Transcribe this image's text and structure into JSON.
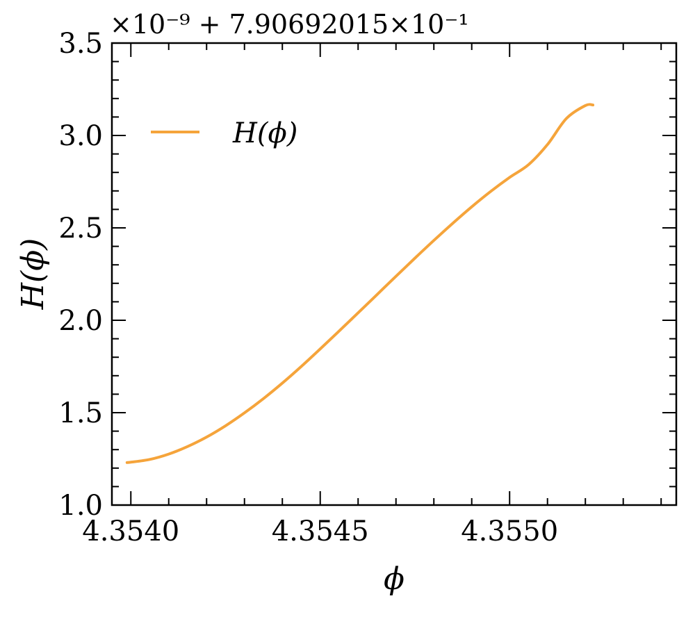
{
  "chart_data": {
    "type": "line",
    "xlabel": "ϕ",
    "ylabel": "H(ϕ)",
    "offset_text": "×10⁻⁹ + 7.90692015×10⁻¹",
    "xlim": [
      4.35395,
      4.35544
    ],
    "ylim": [
      1.0,
      3.5
    ],
    "x_major_ticks": [
      4.354,
      4.3545,
      4.355
    ],
    "x_tick_labels": [
      "4.3540",
      "4.3545",
      "4.3550"
    ],
    "x_minor_step": 0.0001,
    "y_major_ticks": [
      1.0,
      1.5,
      2.0,
      2.5,
      3.0,
      3.5
    ],
    "y_tick_labels": [
      "1.0",
      "1.5",
      "2.0",
      "2.5",
      "3.0",
      "3.5"
    ],
    "y_minor_step": 0.1,
    "grid": false,
    "legend_position": "top-left",
    "series": [
      {
        "name": "H(ϕ)",
        "color": "#f5a43b",
        "x": [
          4.35399,
          4.354,
          4.35405,
          4.3541,
          4.35415,
          4.3542,
          4.35425,
          4.3543,
          4.35435,
          4.3544,
          4.35445,
          4.3545,
          4.35455,
          4.3546,
          4.35465,
          4.3547,
          4.35475,
          4.3548,
          4.35485,
          4.3549,
          4.35495,
          4.355,
          4.35505,
          4.3551,
          4.35515,
          4.3552,
          4.35522
        ],
        "y": [
          1.23,
          1.232,
          1.247,
          1.276,
          1.317,
          1.368,
          1.429,
          1.499,
          1.576,
          1.66,
          1.75,
          1.845,
          1.942,
          2.04,
          2.139,
          2.238,
          2.336,
          2.432,
          2.525,
          2.614,
          2.697,
          2.773,
          2.842,
          2.951,
          3.092,
          3.162,
          3.165
        ]
      }
    ]
  }
}
